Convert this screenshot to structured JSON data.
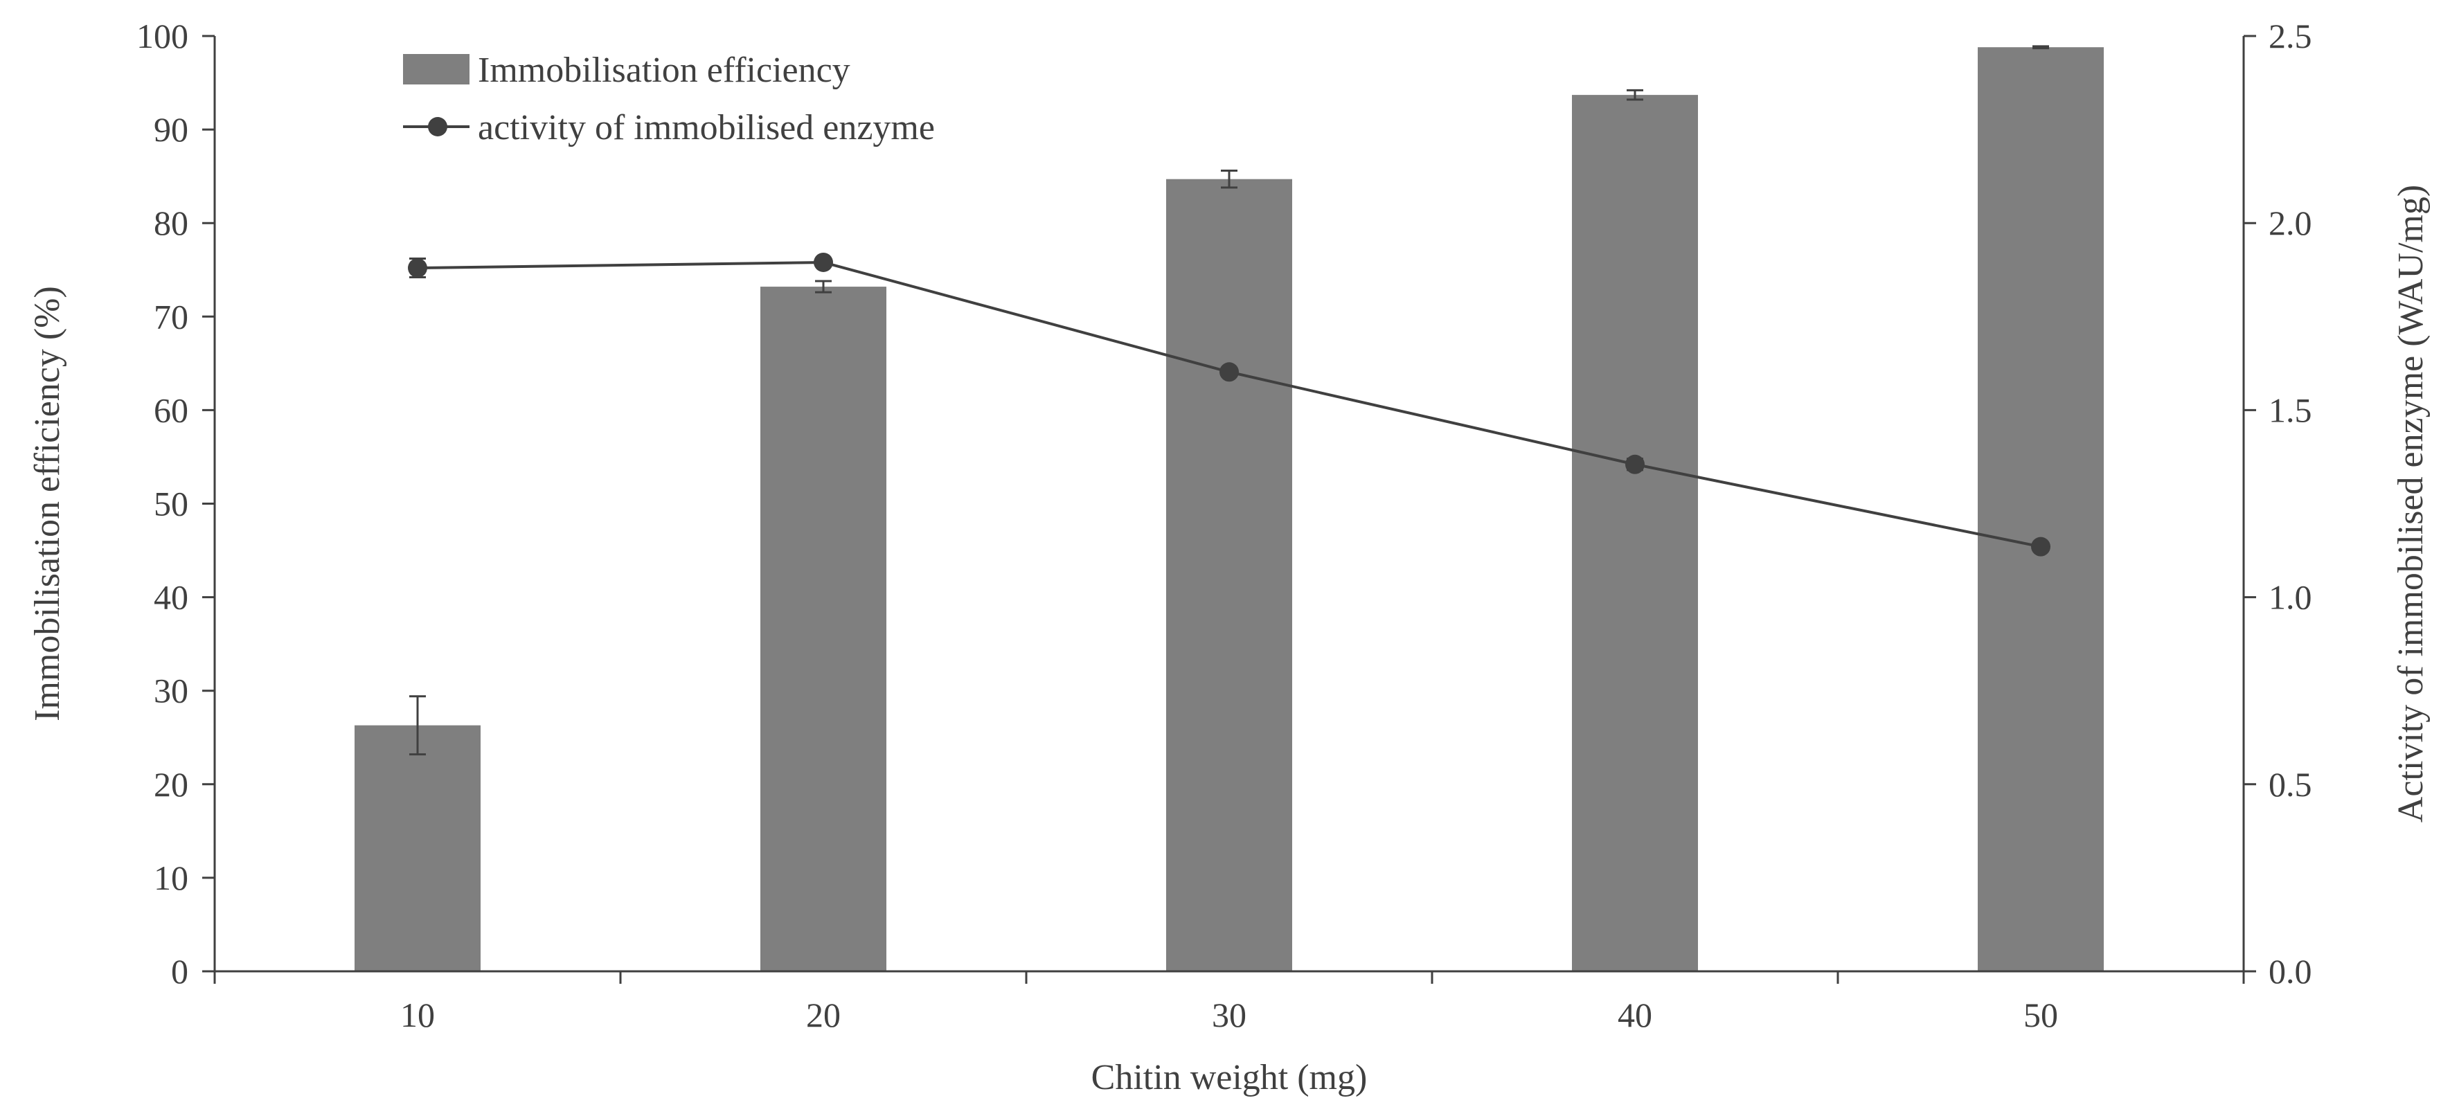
{
  "chart_data": {
    "type": "bar",
    "xlabel": "Chitin weight (mg)",
    "ylabel": "Immobilisation efficiency (%)",
    "y2label": "Activity of immobilised enzyme (WAU/mg)",
    "categories": [
      "10",
      "20",
      "30",
      "40",
      "50"
    ],
    "ylim": [
      0,
      100
    ],
    "y_ticks": [
      "0",
      "10",
      "20",
      "30",
      "40",
      "50",
      "60",
      "70",
      "80",
      "90",
      "100"
    ],
    "y2lim": [
      0,
      2.5
    ],
    "y2_ticks": [
      "0.0",
      "0.5",
      "1.0",
      "1.5",
      "2.0",
      "2.5"
    ],
    "legend_position": "top-left",
    "series": [
      {
        "name": "Immobilisation efficiency",
        "type": "bar",
        "axis": "left",
        "values": [
          26.3,
          73.2,
          84.7,
          93.7,
          98.8
        ],
        "errors": [
          3.1,
          0.6,
          0.9,
          0.5,
          0.1
        ],
        "color": "#7f7f7f"
      },
      {
        "name": "activity of immobilised enzyme",
        "type": "line",
        "axis": "right",
        "values": [
          1.88,
          1.895,
          1.602,
          1.355,
          1.135
        ],
        "errors": [
          0.025,
          0.005,
          0.01,
          0.015,
          0.005
        ],
        "color": "#404040"
      }
    ]
  }
}
